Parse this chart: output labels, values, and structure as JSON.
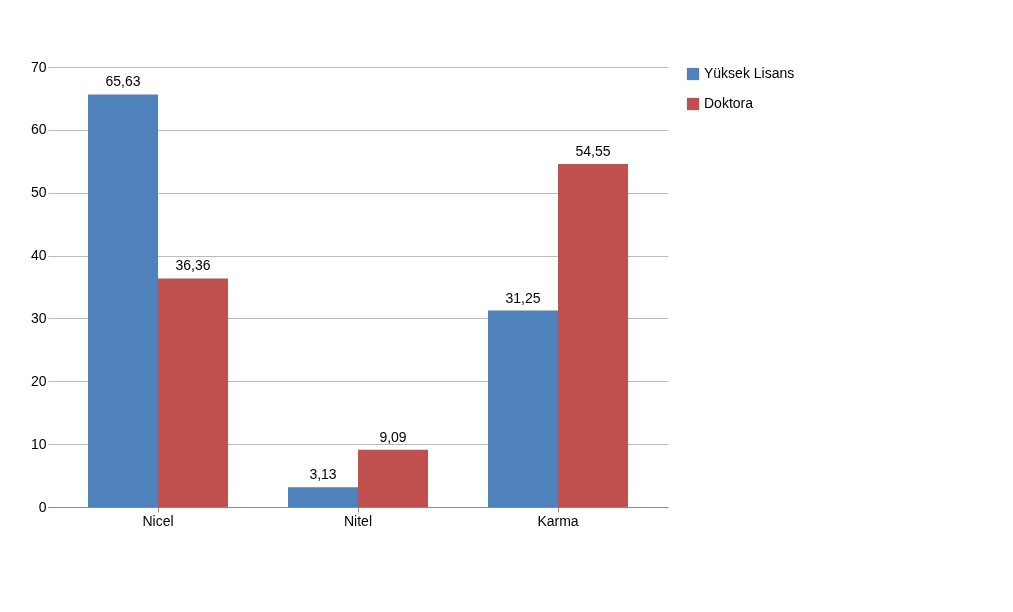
{
  "chart_data": {
    "type": "bar",
    "categories": [
      "Nicel",
      "Nitel",
      "Karma"
    ],
    "series": [
      {
        "name": "Yüksek Lisans",
        "color": "#4f81bd",
        "values": [
          65.63,
          3.13,
          31.25
        ],
        "value_labels": [
          "65,63",
          "3,13",
          "31,25"
        ]
      },
      {
        "name": "Doktora",
        "color": "#c0504d",
        "values": [
          36.36,
          9.09,
          54.55
        ],
        "value_labels": [
          "36,36",
          "9,09",
          "54,55"
        ]
      }
    ],
    "ylim": [
      0,
      70
    ],
    "yticks": [
      0,
      10,
      20,
      30,
      40,
      50,
      60,
      70
    ],
    "grid": "y",
    "legend": "right"
  }
}
